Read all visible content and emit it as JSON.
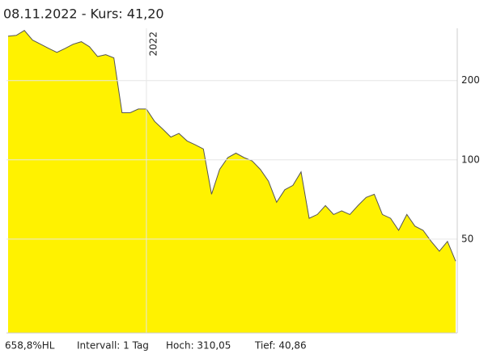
{
  "chart_data": {
    "type": "area",
    "title": "08.11.2022  - Kurs: 41,20",
    "categories": [
      null,
      null,
      null,
      null,
      null,
      null,
      null,
      null,
      null,
      null,
      null,
      null,
      null,
      null,
      null,
      null,
      null,
      "2022",
      null,
      null,
      null,
      null,
      null,
      null,
      null,
      null,
      null,
      null,
      null,
      null,
      null,
      null,
      null,
      null,
      null,
      null,
      null,
      null,
      null,
      null,
      null,
      null,
      null,
      null,
      null,
      null,
      null,
      null,
      null,
      null,
      null,
      null,
      null,
      null,
      null,
      null
    ],
    "series": [
      {
        "name": "Kurs",
        "color": "#fff200",
        "line_color": "#555555",
        "values": [
          295,
          297,
          310,
          285,
          275,
          265,
          256,
          265,
          275,
          281,
          269,
          247,
          251,
          244,
          151,
          151,
          156,
          156,
          140,
          131,
          122,
          126,
          118,
          114,
          110,
          74,
          92,
          102,
          106,
          102,
          99,
          92,
          83,
          69,
          77,
          80,
          90,
          60,
          62,
          67,
          62,
          64,
          62,
          67,
          72,
          74,
          62,
          60,
          54,
          62,
          56,
          54,
          49,
          45,
          49,
          41.2
        ]
      }
    ],
    "log_scale": true,
    "ylim": [
      22,
      316
    ],
    "yticks": [
      50,
      100,
      200
    ],
    "grid": true,
    "stats": [
      "658,8%HL",
      "Intervall: 1 Tag",
      "Hoch: 310,05",
      "Tief: 40,86"
    ]
  }
}
